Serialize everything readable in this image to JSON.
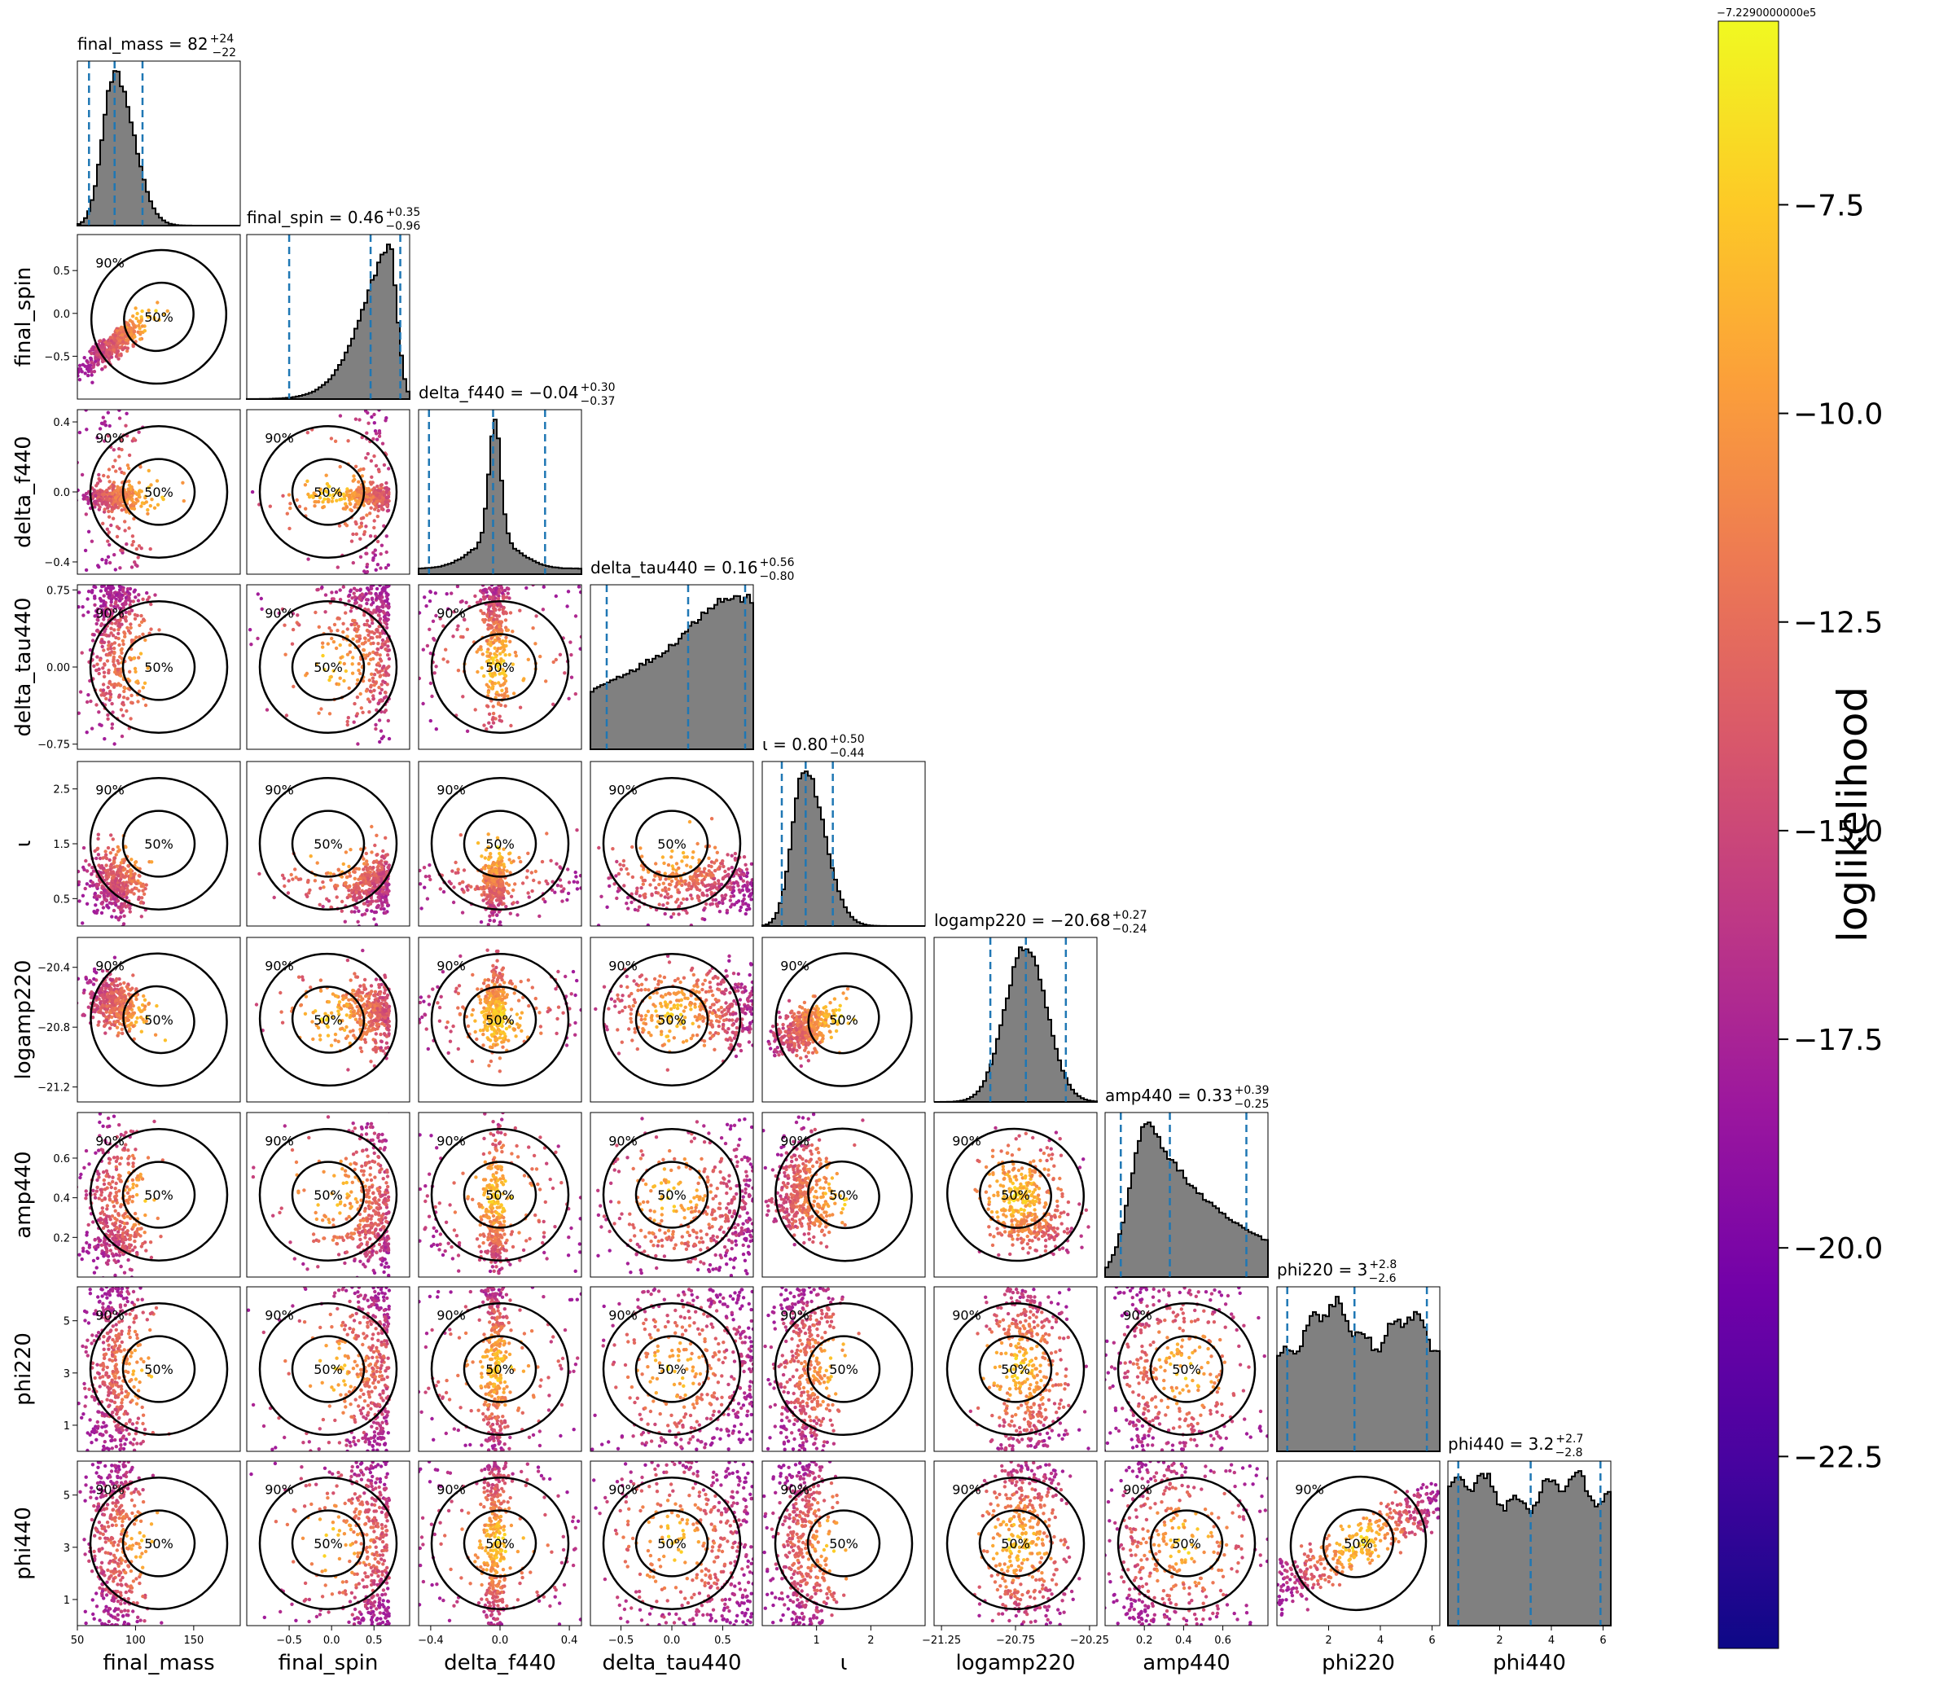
{
  "colors": {
    "hist_fill": "#808080",
    "hist_edge": "#000000",
    "quantile_line": "#1f77b4",
    "contour": "#000000",
    "colormap": [
      "#0d0887",
      "#46039f",
      "#7201a8",
      "#9c179e",
      "#bd3786",
      "#d8576b",
      "#ed7953",
      "#fb9f3a",
      "#fdca26",
      "#f0f921"
    ]
  },
  "chart_data": {
    "type": "corner",
    "parameters": [
      "final_mass",
      "final_spin",
      "delta_f440",
      "delta_tau440",
      "ι",
      "logamp220",
      "amp440",
      "phi220",
      "phi440"
    ],
    "axis_labels": [
      "final_mass",
      "final_spin",
      "delta_f440",
      "delta_tau440",
      "ι",
      "logamp220",
      "amp440",
      "phi220",
      "phi440"
    ],
    "ranges": [
      [
        50,
        190
      ],
      [
        -1.0,
        0.92
      ],
      [
        -0.47,
        0.47
      ],
      [
        -0.8,
        0.8
      ],
      [
        0,
        3.0
      ],
      [
        -21.3,
        -20.2
      ],
      [
        0,
        0.83
      ],
      [
        0,
        6.3
      ],
      [
        0,
        6.3
      ]
    ],
    "ticks": [
      {
        "values": [
          50,
          100,
          150
        ],
        "labels": [
          "50",
          "100",
          "150"
        ]
      },
      {
        "values": [
          -0.5,
          0.0,
          0.5
        ],
        "labels": [
          "−0.5",
          "0.0",
          "0.5"
        ]
      },
      {
        "values": [
          -0.4,
          0.0,
          0.4
        ],
        "labels": [
          "−0.4",
          "0.0",
          "0.4"
        ]
      },
      {
        "values": [
          -0.75,
          0.0,
          0.75
        ],
        "labels": [
          "−0.75",
          "0.00",
          "0.75"
        ]
      },
      {
        "values": [
          0.5,
          1.5,
          2.5
        ],
        "labels": [
          "0.5",
          "1.5",
          "2.5"
        ]
      },
      {
        "values": [
          -21.2,
          -20.8,
          -20.4
        ],
        "labels": [
          "−21.2",
          "−20.8",
          "−20.4"
        ]
      },
      {
        "values": [
          0.2,
          0.4,
          0.6
        ],
        "labels": [
          "0.2",
          "0.4",
          "0.6"
        ]
      },
      {
        "values": [
          1,
          3,
          5
        ],
        "labels": [
          "1",
          "3",
          "5"
        ]
      },
      {
        "values": [
          1,
          3,
          5
        ],
        "labels": [
          "1",
          "3",
          "5"
        ]
      }
    ],
    "bottom_ticks": [
      {
        "values": [
          50,
          100,
          150
        ],
        "labels": [
          "50",
          "100",
          "150"
        ]
      },
      {
        "values": [
          -0.5,
          0.0,
          0.5
        ],
        "labels": [
          "−0.5",
          "0.0",
          "0.5"
        ]
      },
      {
        "values": [
          -0.4,
          0.0,
          0.4
        ],
        "labels": [
          "−0.4",
          "0.0",
          "0.4"
        ]
      },
      {
        "values": [
          -0.5,
          0.0,
          0.5
        ],
        "labels": [
          "−0.5",
          "0.0",
          "0.5"
        ]
      },
      {
        "values": [
          1,
          2
        ],
        "labels": [
          "1",
          "2"
        ]
      },
      {
        "values": [
          -21.25,
          -20.75,
          -20.25
        ],
        "labels": [
          "−21.25",
          "−20.75",
          "−20.25"
        ]
      },
      {
        "values": [
          0.2,
          0.4,
          0.6
        ],
        "labels": [
          "0.2",
          "0.4",
          "0.6"
        ]
      },
      {
        "values": [
          2,
          4,
          6
        ],
        "labels": [
          "2",
          "4",
          "6"
        ]
      },
      {
        "values": [
          2,
          4,
          6
        ],
        "labels": [
          "2",
          "4",
          "6"
        ]
      }
    ],
    "medians": [
      82,
      0.46,
      -0.04,
      0.16,
      0.8,
      -20.68,
      0.33,
      3,
      3.2
    ],
    "plus": [
      24,
      0.35,
      0.3,
      0.56,
      0.5,
      0.27,
      0.39,
      2.8,
      2.7
    ],
    "minus": [
      22,
      0.96,
      0.37,
      0.8,
      0.44,
      0.24,
      0.25,
      2.6,
      2.8
    ],
    "title_main": [
      "final_mass = 82",
      "final_spin = 0.46",
      "delta_f440 = −0.04",
      "delta_tau440 = 0.16",
      "ι = 0.80",
      "logamp220 = −20.68",
      "amp440 = 0.33",
      "phi220 = 3",
      "phi440 = 3.2"
    ],
    "title_sup": [
      "+24",
      "+0.35",
      "+0.30",
      "+0.56",
      "+0.50",
      "+0.27",
      "+0.39",
      "+2.8",
      "+2.7"
    ],
    "title_sub": [
      "−22",
      "−0.96",
      "−0.37",
      "−0.80",
      "−0.44",
      "−0.24",
      "−0.25",
      "−2.6",
      "−2.8"
    ],
    "marginal_shape": [
      {
        "kind": "skewnorm",
        "mu": 82,
        "s": 12
      },
      {
        "kind": "leftskew",
        "peak": 0.68,
        "s": 0.45
      },
      {
        "kind": "peaked",
        "mu": -0.03,
        "s": 0.035
      },
      {
        "kind": "ramp"
      },
      {
        "kind": "skewnorm",
        "mu": 0.78,
        "s": 0.27
      },
      {
        "kind": "normal",
        "mu": -20.68,
        "s": 0.14
      },
      {
        "kind": "skewright",
        "peak": 0.22,
        "s": 0.18
      },
      {
        "kind": "bimodal"
      },
      {
        "kind": "flat"
      }
    ],
    "contour_levels": [
      "50%",
      "90%"
    ],
    "colorbar": {
      "label": "loglikelihood",
      "offset": "−7.2290000000e5",
      "ticks": [
        -7.5,
        -10.0,
        -12.5,
        -15.0,
        -17.5,
        -20.0,
        -22.5
      ],
      "tick_labels": [
        "−7.5",
        "−10.0",
        "−12.5",
        "−15.0",
        "−17.5",
        "−20.0",
        "−22.5"
      ],
      "range": [
        -24.8,
        -5.3
      ]
    }
  }
}
